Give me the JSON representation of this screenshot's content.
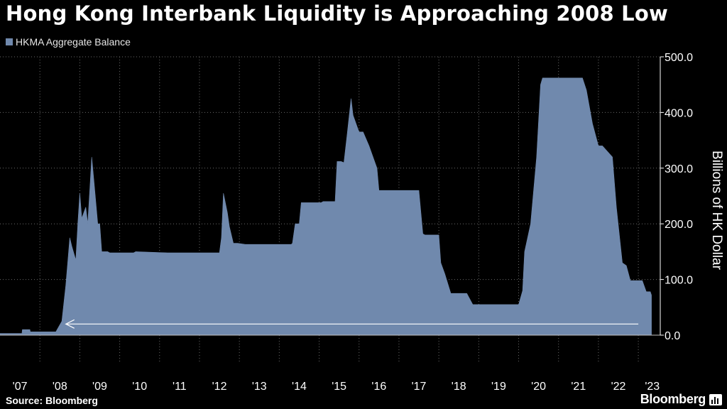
{
  "title": "Hong Kong Interbank Liquidity is Approaching 2008 Low",
  "source": "Source: Bloomberg",
  "brand": "Bloomberg",
  "icons": {
    "brand": "bloomberg-terminal-icon"
  },
  "colors": {
    "background": "#000000",
    "series": "#7089ad",
    "grid": "#6a6a6a",
    "text": "#ffffff",
    "arrow": "#ffffff"
  },
  "chart_data": {
    "type": "area",
    "title": "Hong Kong Interbank Liquidity is Approaching 2008 Low",
    "ylabel": "Billions of HK Dollar",
    "xlabel": "",
    "ylim": [
      0,
      500
    ],
    "xlim": [
      2007.0,
      2023.55
    ],
    "yticks": [
      0,
      100,
      200,
      300,
      400,
      500
    ],
    "ytick_labels": [
      "0.0",
      "100.0",
      "200.0",
      "300.0",
      "400.0",
      "500.0"
    ],
    "xticks": [
      2007.5,
      2008.5,
      2009.5,
      2010.5,
      2011.5,
      2012.5,
      2013.5,
      2014.5,
      2015.5,
      2016.5,
      2017.5,
      2018.5,
      2019.5,
      2020.5,
      2021.5,
      2022.5,
      2023.35
    ],
    "xtick_labels": [
      "'07",
      "'08",
      "'09",
      "'10",
      "'11",
      "'12",
      "'13",
      "'14",
      "'15",
      "'16",
      "'17",
      "'18",
      "'19",
      "'20",
      "'21",
      "'22",
      "'23"
    ],
    "grid": true,
    "legend": "top-left",
    "series": [
      {
        "name": "HKMA Aggregate Balance",
        "x": [
          2007.0,
          2007.55,
          2007.56,
          2007.75,
          2007.76,
          2008.4,
          2008.55,
          2008.65,
          2008.75,
          2008.8,
          2008.9,
          2008.95,
          2009.0,
          2009.05,
          2009.15,
          2009.2,
          2009.3,
          2009.35,
          2009.45,
          2009.5,
          2009.55,
          2009.7,
          2009.75,
          2009.85,
          2009.95,
          2010.05,
          2010.35,
          2010.4,
          2011.2,
          2012.5,
          2012.55,
          2012.6,
          2012.7,
          2012.75,
          2012.85,
          2012.95,
          2013.15,
          2013.2,
          2014.3,
          2014.33,
          2014.4,
          2014.5,
          2014.55,
          2015.05,
          2015.1,
          2015.4,
          2015.45,
          2015.55,
          2015.62,
          2015.7,
          2015.8,
          2015.85,
          2016.0,
          2016.1,
          2016.25,
          2016.45,
          2016.5,
          2016.6,
          2017.0,
          2017.5,
          2017.6,
          2017.65,
          2018.0,
          2018.05,
          2018.15,
          2018.3,
          2018.45,
          2018.55,
          2018.7,
          2018.85,
          2019.0,
          2019.1,
          2019.2,
          2020.0,
          2020.1,
          2020.15,
          2020.3,
          2020.35,
          2020.45,
          2020.55,
          2020.6,
          2020.65,
          2020.75,
          2021.6,
          2021.7,
          2021.85,
          2022.0,
          2022.1,
          2022.35,
          2022.45,
          2022.6,
          2022.7,
          2022.8,
          2023.1,
          2023.2,
          2023.3,
          2023.33
        ],
        "values": [
          3,
          3,
          10,
          10,
          6,
          6,
          25,
          90,
          175,
          160,
          135,
          200,
          255,
          210,
          230,
          200,
          320,
          280,
          200,
          200,
          150,
          150,
          148,
          148,
          148,
          148,
          148,
          150,
          148,
          148,
          175,
          255,
          220,
          195,
          165,
          165,
          163,
          163,
          163,
          165,
          200,
          200,
          238,
          238,
          240,
          240,
          312,
          312,
          310,
          360,
          425,
          395,
          365,
          365,
          340,
          300,
          260,
          260,
          260,
          260,
          182,
          180,
          180,
          130,
          110,
          75,
          75,
          75,
          75,
          55,
          55,
          55,
          55,
          55,
          80,
          150,
          200,
          240,
          320,
          450,
          462,
          462,
          462,
          462,
          440,
          380,
          340,
          340,
          320,
          230,
          130,
          125,
          98,
          98,
          78,
          78,
          72
        ]
      }
    ],
    "annotations": [
      {
        "type": "arrow",
        "from": [
          2023.0,
          20
        ],
        "to": [
          2008.65,
          20
        ]
      }
    ]
  }
}
